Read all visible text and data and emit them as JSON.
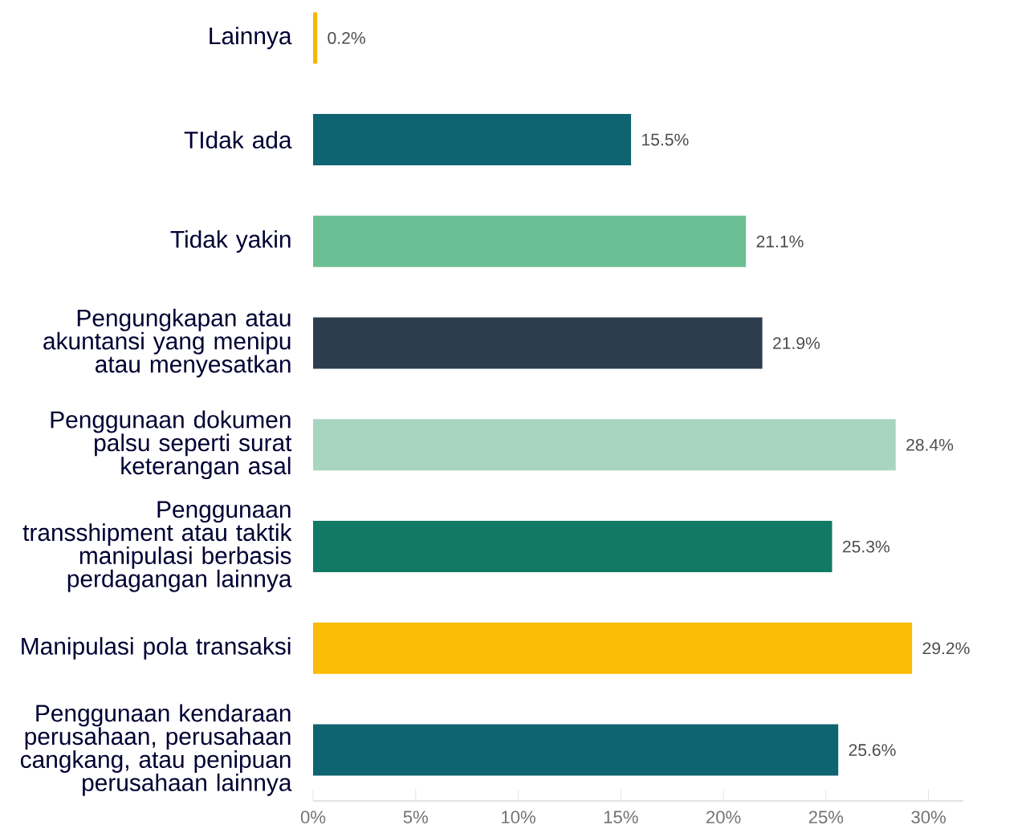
{
  "chart_data": {
    "type": "bar",
    "orientation": "horizontal",
    "categories": [
      "Lainnya",
      "TIdak ada",
      "Tidak yakin",
      "Pengungkapan atau akuntansi yang menipu atau menyesatkan",
      "Penggunaan dokumen palsu seperti surat keterangan asal",
      "Penggunaan transshipment atau taktik manipulasi berbasis perdagangan lainnya",
      "Manipulasi pola transaksi",
      "Penggunaan kendaraan perusahaan, perusahaan cangkang, atau penipuan perusahaan lainnya"
    ],
    "values": [
      0.2,
      15.5,
      21.1,
      21.9,
      28.4,
      25.3,
      29.2,
      25.6
    ],
    "value_labels": [
      "0.2%",
      "15.5%",
      "21.1%",
      "21.9%",
      "28.4%",
      "25.3%",
      "29.2%",
      "25.6%"
    ],
    "colors": [
      "#f5b800",
      "#0e6470",
      "#6bbf94",
      "#2c3e4e",
      "#a8d5c0",
      "#117a65",
      "#fbbc05",
      "#0e6470"
    ],
    "xlim": [
      0,
      31.7
    ],
    "xticks": [
      {
        "value": 0,
        "label": "0%"
      },
      {
        "value": 5,
        "label": "5%"
      },
      {
        "value": 10,
        "label": "10%"
      },
      {
        "value": 15,
        "label": "15%"
      },
      {
        "value": 20,
        "label": "20%"
      },
      {
        "value": 25,
        "label": "25%"
      },
      {
        "value": 30,
        "label": "30%"
      }
    ],
    "grid": false
  }
}
